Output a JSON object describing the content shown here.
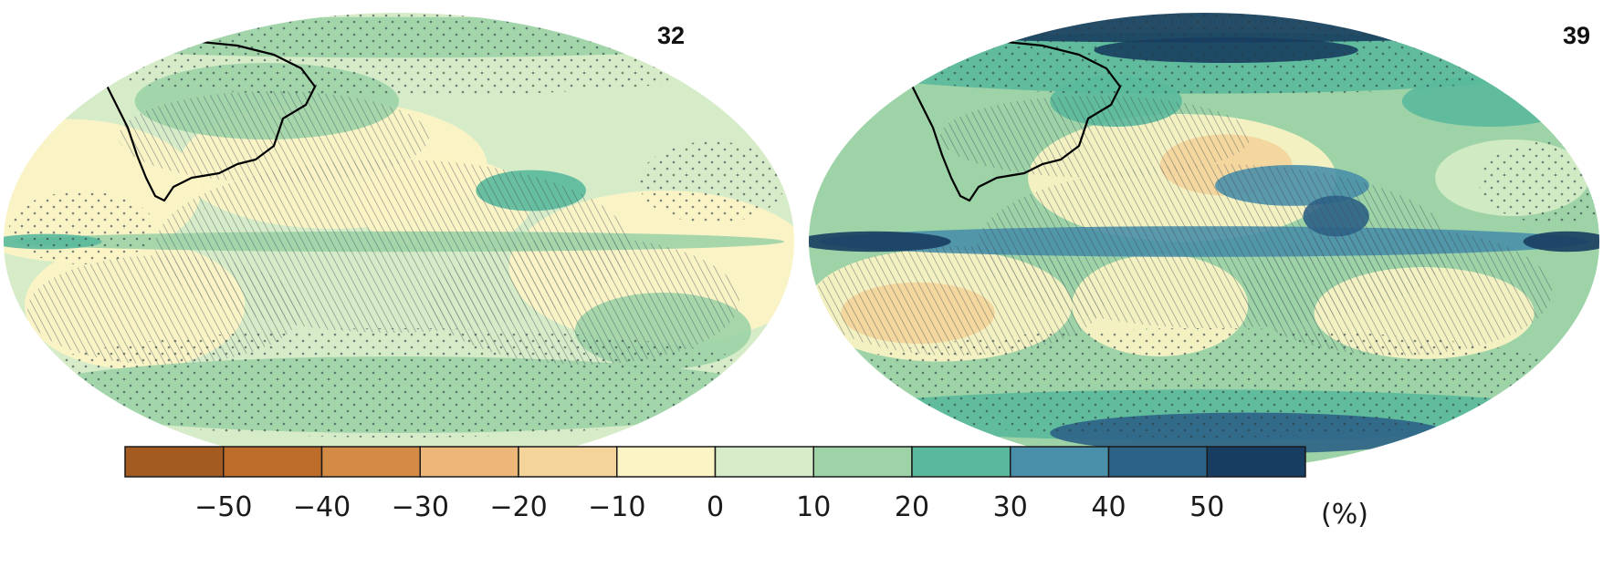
{
  "maps": [
    {
      "id": "left",
      "label": "32",
      "background_class": 6,
      "blobs": [
        {
          "cx": -150,
          "cy": 20,
          "rx": 60,
          "ry": 28,
          "cls": 5
        },
        {
          "cx": -30,
          "cy": 30,
          "rx": 70,
          "ry": 25,
          "cls": 5
        },
        {
          "cx": 20,
          "cy": 15,
          "rx": 40,
          "ry": 18,
          "cls": 5
        },
        {
          "cx": 120,
          "cy": -10,
          "rx": 70,
          "ry": 30,
          "cls": 5
        },
        {
          "cx": -120,
          "cy": -25,
          "rx": 50,
          "ry": 25,
          "cls": 5
        },
        {
          "cx": 60,
          "cy": 20,
          "rx": 25,
          "ry": 8,
          "cls": 8
        },
        {
          "cx": 120,
          "cy": -35,
          "rx": 40,
          "ry": 15,
          "cls": 7
        },
        {
          "cx": -60,
          "cy": 55,
          "rx": 60,
          "ry": 15,
          "cls": 7
        },
        {
          "cx": 0,
          "cy": -60,
          "rx": 175,
          "ry": 15,
          "cls": 7
        },
        {
          "cx": 0,
          "cy": 0,
          "rx": 175,
          "ry": 4,
          "cls": 7
        },
        {
          "cx": -160,
          "cy": 0,
          "rx": 25,
          "ry": 3,
          "cls": 8
        },
        {
          "cx": 0,
          "cy": 80,
          "rx": 175,
          "ry": 8,
          "cls": 7
        }
      ]
    },
    {
      "id": "right",
      "label": "39",
      "background_class": 7,
      "blobs": [
        {
          "cx": -10,
          "cy": 25,
          "rx": 70,
          "ry": 25,
          "cls": 5
        },
        {
          "cx": 10,
          "cy": 30,
          "rx": 30,
          "ry": 12,
          "cls": 4
        },
        {
          "cx": -120,
          "cy": -25,
          "rx": 60,
          "ry": 22,
          "cls": 5
        },
        {
          "cx": -130,
          "cy": -28,
          "rx": 35,
          "ry": 12,
          "cls": 4
        },
        {
          "cx": 100,
          "cy": -28,
          "rx": 50,
          "ry": 18,
          "cls": 5
        },
        {
          "cx": -20,
          "cy": -25,
          "rx": 40,
          "ry": 20,
          "cls": 5
        },
        {
          "cx": 140,
          "cy": 25,
          "rx": 35,
          "ry": 15,
          "cls": 6
        },
        {
          "cx": 0,
          "cy": 0,
          "rx": 175,
          "ry": 6,
          "cls": 9
        },
        {
          "cx": -150,
          "cy": 0,
          "rx": 35,
          "ry": 4,
          "cls": 11
        },
        {
          "cx": 165,
          "cy": 0,
          "rx": 20,
          "ry": 4,
          "cls": 11
        },
        {
          "cx": 40,
          "cy": 22,
          "rx": 35,
          "ry": 8,
          "cls": 9
        },
        {
          "cx": 60,
          "cy": 10,
          "rx": 15,
          "ry": 8,
          "cls": 10
        },
        {
          "cx": 0,
          "cy": 70,
          "rx": 175,
          "ry": 12,
          "cls": 8
        },
        {
          "cx": 0,
          "cy": -68,
          "rx": 175,
          "ry": 10,
          "cls": 8
        },
        {
          "cx": 20,
          "cy": -75,
          "rx": 90,
          "ry": 8,
          "cls": 10
        },
        {
          "cx": 0,
          "cy": 84,
          "rx": 175,
          "ry": 6,
          "cls": 11
        },
        {
          "cx": 10,
          "cy": 75,
          "rx": 60,
          "ry": 5,
          "cls": 11
        },
        {
          "cx": 130,
          "cy": 55,
          "rx": 40,
          "ry": 10,
          "cls": 8
        },
        {
          "cx": -40,
          "cy": 55,
          "rx": 30,
          "ry": 10,
          "cls": 8
        }
      ]
    }
  ],
  "colorbar": {
    "unit": "(%)",
    "tick_labels": [
      "−50",
      "−40",
      "−30",
      "−20",
      "−10",
      "0",
      "10",
      "20",
      "30",
      "40",
      "50"
    ],
    "colors": [
      "#a35b21",
      "#bd6c2a",
      "#d48b45",
      "#ecb778",
      "#f4d49b",
      "#fdf4c5",
      "#d6ecc8",
      "#9dd3a7",
      "#5ab99c",
      "#4a8faa",
      "#2d6287",
      "#173d61"
    ]
  }
}
